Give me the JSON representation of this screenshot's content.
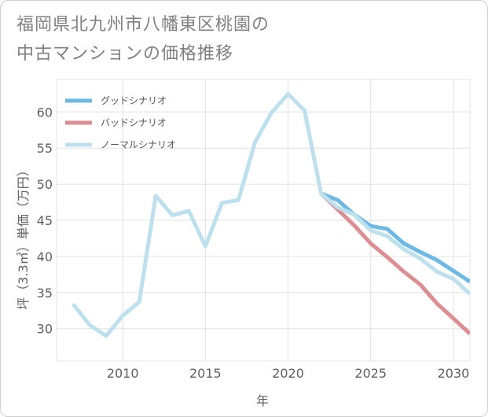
{
  "title_line1": "福岡県北九州市八幡東区桃園の",
  "title_line2": "中古マンションの価格推移",
  "chart_data": {
    "type": "line",
    "xlabel": "年",
    "ylabel": "坪（3.3㎡）単価（万円）",
    "xlim": [
      2006,
      2031
    ],
    "ylim": [
      25.5,
      64.5
    ],
    "grid": true,
    "legend_position": "top-left",
    "x_ticks": [
      2010,
      2015,
      2020,
      2025,
      2030
    ],
    "y_ticks": [
      30,
      35,
      40,
      45,
      50,
      55,
      60
    ],
    "series": [
      {
        "name": "グッドシナリオ",
        "color": "#6cb8e6",
        "x": [
          2022,
          2023,
          2024,
          2025,
          2026,
          2027,
          2028,
          2029,
          2030,
          2031
        ],
        "values": [
          48.7,
          47.8,
          45.8,
          44.2,
          43.8,
          41.8,
          40.6,
          39.5,
          38.0,
          36.5
        ]
      },
      {
        "name": "バッドシナリオ",
        "color": "#dd8e93",
        "x": [
          2022,
          2023,
          2024,
          2025,
          2026,
          2027,
          2028,
          2029,
          2030,
          2031
        ],
        "values": [
          48.7,
          46.5,
          44.3,
          41.8,
          39.9,
          37.9,
          36.1,
          33.5,
          31.4,
          29.3
        ]
      },
      {
        "name": "ノーマルシナリオ",
        "color": "#bde0ee",
        "x": [
          2007,
          2008,
          2009,
          2010,
          2011,
          2012,
          2013,
          2014,
          2015,
          2016,
          2017,
          2018,
          2019,
          2020,
          2021,
          2022,
          2023,
          2024,
          2025,
          2026,
          2027,
          2028,
          2029,
          2030,
          2031
        ],
        "values": [
          33.4,
          30.5,
          29.0,
          31.8,
          33.7,
          48.4,
          45.7,
          46.3,
          41.4,
          47.4,
          47.8,
          55.8,
          59.9,
          62.5,
          60.2,
          48.7,
          46.8,
          45.8,
          43.6,
          42.8,
          41.0,
          39.7,
          37.9,
          36.9,
          34.8
        ]
      }
    ]
  }
}
